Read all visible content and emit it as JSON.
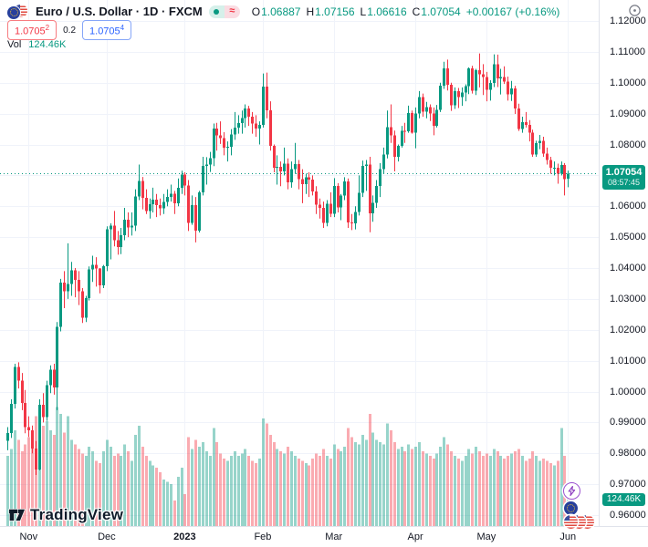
{
  "header": {
    "symbol_title": "Euro / U.S. Dollar · 1D · FXCM",
    "status": {
      "market_open_dot": "●",
      "delayed_symbol": "≈"
    },
    "ohlc": {
      "o_label": "O",
      "o": "1.06887",
      "h_label": "H",
      "h": "1.07156",
      "l_label": "L",
      "l": "1.06616",
      "c_label": "C",
      "c": "1.07054",
      "change": "+0.00167 (+0.16%)"
    },
    "bid": "1.0705",
    "bid_sup": "2",
    "spread": "0.2",
    "ask": "1.0705",
    "ask_sup": "4",
    "vol_label": "Vol",
    "vol_value": "124.46K"
  },
  "price_axis": {
    "current_price_label": "1.07054",
    "countdown": "08:57:45",
    "volume_badge": "124.46K"
  },
  "watermark": "TradingView",
  "colors": {
    "up": "#089981",
    "down": "#f23645",
    "vol_opacity": 0.42,
    "grid": "#f0f3fa",
    "axis_border": "#e0e3eb",
    "text": "#131722",
    "accent_blue": "#2962ff",
    "badge_bg": "#089981"
  },
  "chart_data": {
    "type": "candlestick",
    "title": "Euro / U.S. Dollar",
    "timeframe": "1D",
    "exchange": "FXCM",
    "current_price": 1.07054,
    "y_axis": {
      "min": 0.9565,
      "max": 1.1268,
      "tick_step": 0.01,
      "ticks": [
        1.12,
        1.11,
        1.1,
        1.09,
        1.08,
        1.07,
        1.06,
        1.05,
        1.04,
        1.03,
        1.02,
        1.01,
        1.0,
        0.99,
        0.98,
        0.97,
        0.96
      ],
      "hidden_tick_label": 1.07
    },
    "x_axis": {
      "months": [
        {
          "label": "Nov",
          "index": 6
        },
        {
          "label": "Dec",
          "index": 28
        },
        {
          "label": "2023",
          "index": 50,
          "year": true
        },
        {
          "label": "Feb",
          "index": 72
        },
        {
          "label": "Mar",
          "index": 92
        },
        {
          "label": "Apr",
          "index": 115
        },
        {
          "label": "May",
          "index": 135
        },
        {
          "label": "Jun",
          "index": 158
        }
      ]
    },
    "volume_scale_max_k": 580,
    "candles": [
      [
        0.984,
        0.9885,
        0.981,
        0.9865
      ],
      [
        0.9865,
        0.9975,
        0.985,
        0.996
      ],
      [
        0.996,
        1.009,
        0.9945,
        1.008
      ],
      [
        1.008,
        1.0095,
        1.001,
        1.0035
      ],
      [
        1.0035,
        1.006,
        0.994,
        0.9963
      ],
      [
        0.9963,
        1.0005,
        0.9865,
        0.9885
      ],
      [
        0.9885,
        0.992,
        0.9853,
        0.9875
      ],
      [
        0.9875,
        0.989,
        0.98,
        0.9815
      ],
      [
        0.9815,
        0.984,
        0.973,
        0.9748
      ],
      [
        0.9748,
        0.9975,
        0.9745,
        0.9957
      ],
      [
        0.9957,
        0.9995,
        0.99,
        0.9918
      ],
      [
        0.9918,
        1.0035,
        0.9905,
        1.0021
      ],
      [
        1.0021,
        1.0085,
        0.9995,
        1.0071
      ],
      [
        1.0071,
        1.009,
        0.999,
        1.0013
      ],
      [
        1.0013,
        1.0225,
        0.994,
        1.0209
      ],
      [
        1.0209,
        1.0365,
        1.0195,
        1.0353
      ],
      [
        1.0353,
        1.039,
        1.027,
        1.0325
      ],
      [
        1.0325,
        1.048,
        1.03,
        1.0348
      ],
      [
        1.0348,
        1.042,
        1.031,
        1.0393
      ],
      [
        1.0393,
        1.04,
        1.0305,
        1.0362
      ],
      [
        1.0362,
        1.039,
        1.028,
        1.0325
      ],
      [
        1.0325,
        1.0335,
        1.0222,
        1.0239
      ],
      [
        1.0239,
        1.031,
        1.0225,
        1.0303
      ],
      [
        1.0303,
        1.0405,
        1.0295,
        1.0395
      ],
      [
        1.0395,
        1.044,
        1.0355,
        1.041
      ],
      [
        1.041,
        1.0435,
        1.034,
        1.0398
      ],
      [
        1.0398,
        1.04,
        1.0318,
        1.0344
      ],
      [
        1.0344,
        1.041,
        1.0335,
        1.0406
      ],
      [
        1.0406,
        1.0535,
        1.039,
        1.0525
      ],
      [
        1.0525,
        1.0545,
        1.0428,
        1.0537
      ],
      [
        1.0537,
        1.0585,
        1.047,
        1.049
      ],
      [
        1.049,
        1.052,
        1.0443,
        1.0468
      ],
      [
        1.0468,
        1.053,
        1.0445,
        1.0507
      ],
      [
        1.0507,
        1.0595,
        1.049,
        1.0556
      ],
      [
        1.0556,
        1.058,
        1.05,
        1.0531
      ],
      [
        1.0531,
        1.058,
        1.0505,
        1.0538
      ],
      [
        1.0538,
        1.0655,
        1.052,
        1.0631
      ],
      [
        1.0631,
        1.0735,
        1.062,
        1.0682
      ],
      [
        1.0682,
        1.0695,
        1.059,
        1.0627
      ],
      [
        1.0627,
        1.0655,
        1.0575,
        1.0585
      ],
      [
        1.0585,
        1.0625,
        1.056,
        1.0606
      ],
      [
        1.0606,
        1.066,
        1.058,
        1.0622
      ],
      [
        1.0622,
        1.064,
        1.0565,
        1.0604
      ],
      [
        1.0604,
        1.0625,
        1.057,
        1.0594
      ],
      [
        1.0594,
        1.064,
        1.0575,
        1.0614
      ],
      [
        1.0614,
        1.0655,
        1.06,
        1.063
      ],
      [
        1.063,
        1.067,
        1.0615,
        1.0641
      ],
      [
        1.0641,
        1.065,
        1.0575,
        1.0609
      ],
      [
        1.0609,
        1.069,
        1.06,
        1.066
      ],
      [
        1.066,
        1.0715,
        1.064,
        1.0702
      ],
      [
        1.0702,
        1.071,
        1.0635,
        1.0667
      ],
      [
        1.0667,
        1.0685,
        1.052,
        1.0546
      ],
      [
        1.0546,
        1.0635,
        1.054,
        1.0603
      ],
      [
        1.0603,
        1.063,
        1.0483,
        1.0521
      ],
      [
        1.0521,
        1.065,
        1.0515,
        1.0645
      ],
      [
        1.0645,
        1.076,
        1.0635,
        1.073
      ],
      [
        1.073,
        1.0759,
        1.067,
        1.0735
      ],
      [
        1.0735,
        1.0776,
        1.0711,
        1.0756
      ],
      [
        1.0756,
        1.0868,
        1.073,
        1.0852
      ],
      [
        1.0852,
        1.087,
        1.078,
        1.083
      ],
      [
        1.083,
        1.0875,
        1.0802,
        1.082
      ],
      [
        1.082,
        1.084,
        1.0765,
        1.0789
      ],
      [
        1.0789,
        1.081,
        1.0745,
        1.0793
      ],
      [
        1.0793,
        1.085,
        1.0765,
        1.0832
      ],
      [
        1.0832,
        1.0905,
        1.0815,
        1.0855
      ],
      [
        1.0855,
        1.0895,
        1.0835,
        1.087
      ],
      [
        1.087,
        1.091,
        1.0835,
        1.0886
      ],
      [
        1.0886,
        1.093,
        1.0855,
        1.0916
      ],
      [
        1.0916,
        1.0925,
        1.086,
        1.089
      ],
      [
        1.089,
        1.0905,
        1.0835,
        1.0868
      ],
      [
        1.0868,
        1.0895,
        1.0825,
        1.0852
      ],
      [
        1.0852,
        1.0875,
        1.08,
        1.0863
      ],
      [
        1.0863,
        1.103,
        1.0855,
        1.0988
      ],
      [
        1.0988,
        1.1033,
        1.0885,
        1.0911
      ],
      [
        1.0911,
        1.094,
        1.078,
        1.0795
      ],
      [
        1.0795,
        1.08,
        1.071,
        1.0725
      ],
      [
        1.0725,
        1.0765,
        1.067,
        1.0727
      ],
      [
        1.0727,
        1.0745,
        1.0665,
        1.0713
      ],
      [
        1.0713,
        1.079,
        1.07,
        1.0738
      ],
      [
        1.0738,
        1.0755,
        1.0655,
        1.0678
      ],
      [
        1.0678,
        1.0745,
        1.066,
        1.0721
      ],
      [
        1.0721,
        1.0805,
        1.0705,
        1.0737
      ],
      [
        1.0737,
        1.075,
        1.0655,
        1.0688
      ],
      [
        1.0688,
        1.072,
        1.061,
        1.0672
      ],
      [
        1.0672,
        1.0705,
        1.064,
        1.0694
      ],
      [
        1.0694,
        1.071,
        1.063,
        1.0686
      ],
      [
        1.0686,
        1.07,
        1.0635,
        1.0648
      ],
      [
        1.0648,
        1.0665,
        1.0575,
        1.0605
      ],
      [
        1.0605,
        1.0625,
        1.056,
        1.0595
      ],
      [
        1.0595,
        1.0615,
        1.053,
        1.0546
      ],
      [
        1.0546,
        1.062,
        1.0535,
        1.0608
      ],
      [
        1.0608,
        1.0645,
        1.0565,
        1.0576
      ],
      [
        1.0576,
        1.0691,
        1.0565,
        1.0666
      ],
      [
        1.0666,
        1.0675,
        1.058,
        1.0597
      ],
      [
        1.0597,
        1.064,
        1.0555,
        1.0635
      ],
      [
        1.0635,
        1.0694,
        1.062,
        1.068
      ],
      [
        1.068,
        1.069,
        1.053,
        1.0547
      ],
      [
        1.0547,
        1.0575,
        1.0523,
        1.0545
      ],
      [
        1.0545,
        1.06,
        1.0525,
        1.0581
      ],
      [
        1.0581,
        1.07,
        1.057,
        1.0643
      ],
      [
        1.0643,
        1.0748,
        1.063,
        1.073
      ],
      [
        1.073,
        1.075,
        1.065,
        1.0735
      ],
      [
        1.0735,
        1.076,
        1.0516,
        1.0577
      ],
      [
        1.0577,
        1.0635,
        1.055,
        1.0611
      ],
      [
        1.0611,
        1.0685,
        1.0595,
        1.0665
      ],
      [
        1.0665,
        1.074,
        1.063,
        1.072
      ],
      [
        1.072,
        1.079,
        1.0705,
        1.0767
      ],
      [
        1.0767,
        1.091,
        1.0755,
        1.0856
      ],
      [
        1.0856,
        1.093,
        1.0805,
        1.083
      ],
      [
        1.083,
        1.0845,
        1.0713,
        1.076
      ],
      [
        1.076,
        1.08,
        1.0745,
        1.0796
      ],
      [
        1.0796,
        1.086,
        1.079,
        1.0845
      ],
      [
        1.0845,
        1.087,
        1.0805,
        1.0843
      ],
      [
        1.0843,
        1.0926,
        1.0838,
        1.0902
      ],
      [
        1.0902,
        1.091,
        1.0835,
        1.0839
      ],
      [
        1.0839,
        1.092,
        1.0788,
        1.0901
      ],
      [
        1.0901,
        1.0973,
        1.0885,
        1.0954
      ],
      [
        1.0954,
        1.0965,
        1.089,
        1.0906
      ],
      [
        1.0906,
        1.0938,
        1.0885,
        1.0921
      ],
      [
        1.0921,
        1.093,
        1.0876,
        1.0901
      ],
      [
        1.0901,
        1.092,
        1.083,
        1.086
      ],
      [
        1.086,
        1.0928,
        1.0855,
        1.0912
      ],
      [
        1.0912,
        1.1,
        1.0905,
        1.099
      ],
      [
        1.099,
        1.1068,
        1.098,
        1.1046
      ],
      [
        1.1046,
        1.1075,
        1.0975,
        1.0994
      ],
      [
        1.0994,
        1.1,
        1.0909,
        1.0927
      ],
      [
        1.0927,
        1.0985,
        1.0915,
        1.0973
      ],
      [
        1.0973,
        1.0983,
        1.0918,
        1.0954
      ],
      [
        1.0954,
        1.0985,
        1.0925,
        1.0969
      ],
      [
        1.0969,
        1.0995,
        1.094,
        1.0989
      ],
      [
        1.0989,
        1.105,
        1.0963,
        1.1046
      ],
      [
        1.1046,
        1.1055,
        1.0965,
        1.0974
      ],
      [
        1.0974,
        1.1045,
        1.096,
        1.104
      ],
      [
        1.104,
        1.1095,
        1.0985,
        1.1028
      ],
      [
        1.1028,
        1.106,
        1.096,
        1.1019
      ],
      [
        1.1019,
        1.1035,
        1.094,
        1.0977
      ],
      [
        1.0977,
        1.1008,
        1.0942,
        1.1
      ],
      [
        1.1,
        1.1092,
        1.0986,
        1.106
      ],
      [
        1.106,
        1.1091,
        1.0986,
        1.1014
      ],
      [
        1.1014,
        1.1045,
        1.0962,
        1.1019
      ],
      [
        1.1019,
        1.1053,
        1.0996,
        1.1004
      ],
      [
        1.1004,
        1.102,
        1.0942,
        1.0962
      ],
      [
        1.0962,
        1.1006,
        1.0941,
        1.0981
      ],
      [
        1.0981,
        1.099,
        1.0899,
        1.0916
      ],
      [
        1.0916,
        1.0932,
        1.0844,
        1.085
      ],
      [
        1.085,
        1.089,
        1.0838,
        1.0873
      ],
      [
        1.0873,
        1.0905,
        1.0855,
        1.0863
      ],
      [
        1.0863,
        1.0879,
        1.081,
        1.0839
      ],
      [
        1.0839,
        1.0848,
        1.076,
        1.0768
      ],
      [
        1.0768,
        1.0812,
        1.076,
        1.0805
      ],
      [
        1.0805,
        1.0831,
        1.0785,
        1.0812
      ],
      [
        1.0812,
        1.0825,
        1.076,
        1.077
      ],
      [
        1.077,
        1.079,
        1.0735,
        1.075
      ],
      [
        1.075,
        1.076,
        1.0705,
        1.0724
      ],
      [
        1.0724,
        1.0745,
        1.07,
        1.0724
      ],
      [
        1.0724,
        1.0738,
        1.0673,
        1.0706
      ],
      [
        1.0706,
        1.0745,
        1.07,
        1.0734
      ],
      [
        1.0734,
        1.074,
        1.0635,
        1.0688
      ],
      [
        1.06887,
        1.07156,
        1.06616,
        1.07054
      ]
    ],
    "volumes_k": [
      330,
      363,
      451,
      407,
      352,
      385,
      418,
      440,
      517,
      572,
      473,
      495,
      451,
      429,
      561,
      528,
      440,
      517,
      407,
      385,
      363,
      341,
      330,
      374,
      352,
      308,
      297,
      352,
      407,
      374,
      330,
      341,
      330,
      385,
      352,
      308,
      429,
      473,
      374,
      330,
      308,
      286,
      275,
      253,
      220,
      209,
      198,
      120,
      231,
      275,
      150,
      418,
      363,
      407,
      374,
      396,
      352,
      330,
      462,
      396,
      341,
      319,
      308,
      330,
      352,
      330,
      341,
      363,
      330,
      308,
      297,
      319,
      506,
      484,
      429,
      396,
      363,
      352,
      341,
      374,
      352,
      330,
      319,
      308,
      297,
      286,
      319,
      341,
      330,
      363,
      330,
      319,
      385,
      363,
      352,
      374,
      462,
      418,
      396,
      385,
      429,
      407,
      528,
      440,
      407,
      396,
      385,
      484,
      451,
      396,
      363,
      374,
      352,
      385,
      363,
      374,
      396,
      352,
      341,
      330,
      319,
      341,
      374,
      418,
      385,
      352,
      330,
      319,
      308,
      330,
      363,
      341,
      374,
      352,
      330,
      341,
      330,
      363,
      352,
      330,
      319,
      330,
      341,
      352,
      363,
      330,
      308,
      319,
      352,
      330,
      308,
      319,
      308,
      297,
      286,
      308,
      462,
      330,
      124.46
    ]
  }
}
